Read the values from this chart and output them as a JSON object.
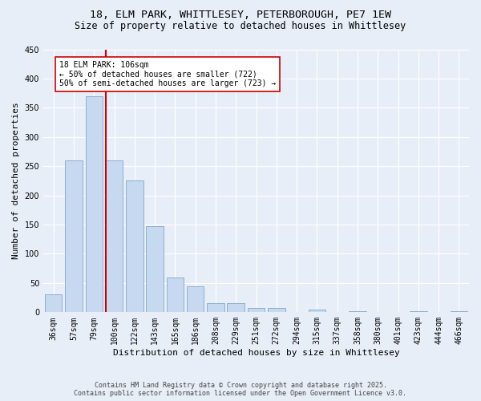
{
  "title_line1": "18, ELM PARK, WHITTLESEY, PETERBOROUGH, PE7 1EW",
  "title_line2": "Size of property relative to detached houses in Whittlesey",
  "xlabel": "Distribution of detached houses by size in Whittlesey",
  "ylabel": "Number of detached properties",
  "categories": [
    "36sqm",
    "57sqm",
    "79sqm",
    "100sqm",
    "122sqm",
    "143sqm",
    "165sqm",
    "186sqm",
    "208sqm",
    "229sqm",
    "251sqm",
    "272sqm",
    "294sqm",
    "315sqm",
    "337sqm",
    "358sqm",
    "380sqm",
    "401sqm",
    "423sqm",
    "444sqm",
    "466sqm"
  ],
  "values": [
    30,
    260,
    370,
    260,
    225,
    148,
    60,
    45,
    15,
    15,
    8,
    8,
    0,
    5,
    0,
    2,
    0,
    0,
    2,
    0,
    2
  ],
  "bar_color": "#c6d9f0",
  "bar_edge_color": "#8ab0d0",
  "vline_color": "#cc0000",
  "annotation_text": "18 ELM PARK: 106sqm\n← 50% of detached houses are smaller (722)\n50% of semi-detached houses are larger (723) →",
  "annotation_box_color": "#ffffff",
  "annotation_box_edge": "#cc0000",
  "ylim": [
    0,
    450
  ],
  "yticks": [
    0,
    50,
    100,
    150,
    200,
    250,
    300,
    350,
    400,
    450
  ],
  "background_color": "#e8eef7",
  "footer_text": "Contains HM Land Registry data © Crown copyright and database right 2025.\nContains public sector information licensed under the Open Government Licence v3.0.",
  "title_fontsize": 9.5,
  "subtitle_fontsize": 8.5,
  "tick_fontsize": 7,
  "label_fontsize": 8,
  "annotation_fontsize": 7,
  "footer_fontsize": 6
}
